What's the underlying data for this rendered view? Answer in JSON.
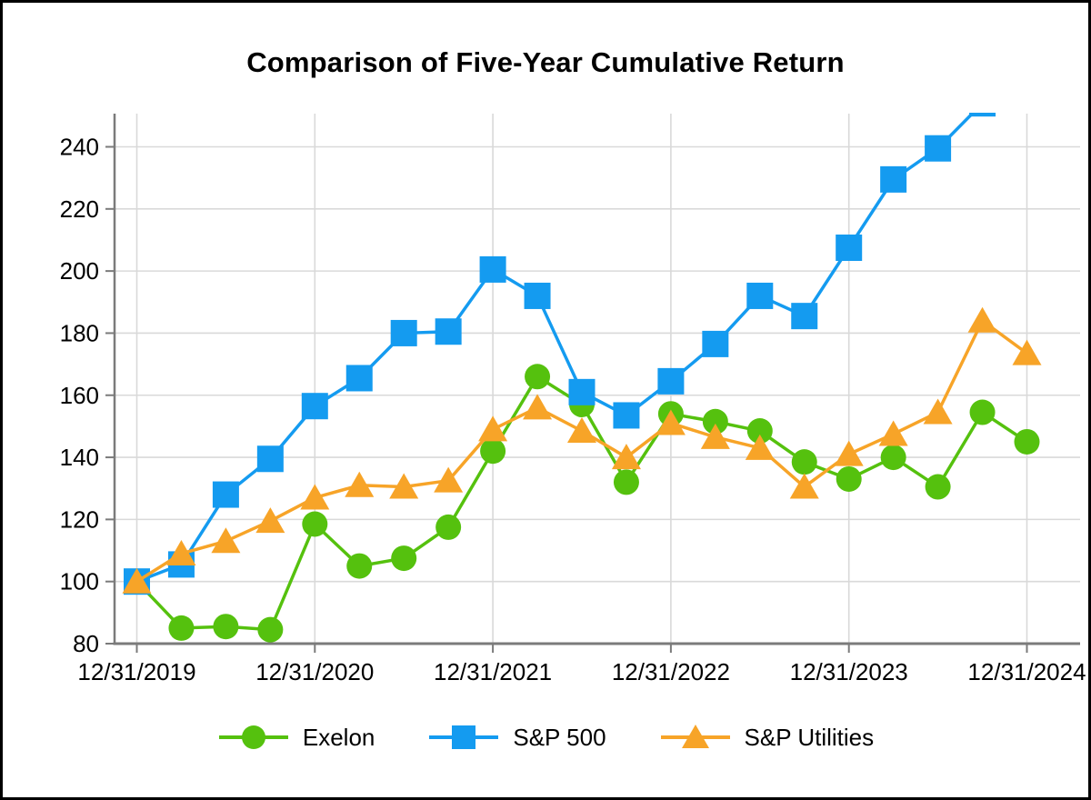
{
  "chart_data": {
    "type": "line",
    "title": "Comparison of Five-Year Cumulative Return",
    "x_tick_labels": [
      "12/31/2019",
      "12/31/2020",
      "12/31/2021",
      "12/31/2022",
      "12/31/2023",
      "12/31/2024"
    ],
    "points_per_year": 4,
    "x_sampling": "quarterly from 12/31/2019 to 12/31/2024 (21 points per series)",
    "y_ticks": [
      80,
      100,
      120,
      140,
      160,
      180,
      200,
      220,
      240
    ],
    "ylim": [
      80,
      251
    ],
    "grid": true,
    "legend_position": "bottom",
    "series": [
      {
        "name": "Exelon",
        "color": "#55c10e",
        "marker": "circle",
        "values": [
          100,
          85,
          85.5,
          84.5,
          118.5,
          105,
          107.5,
          117.5,
          142,
          166,
          157,
          132,
          154,
          151.5,
          148.5,
          138.5,
          133,
          140,
          130.5,
          154.5,
          145
        ]
      },
      {
        "name": "S&P 500",
        "color": "#149bf0",
        "marker": "square",
        "values": [
          100,
          105.5,
          128,
          139.5,
          156.5,
          165.5,
          180,
          180.5,
          200.5,
          192,
          161,
          153.5,
          164.5,
          176.5,
          192,
          185.5,
          207.5,
          229.5,
          239.5,
          254,
          257
        ],
        "note": "last two points rise above the visible axis range; line is clipped at top of plot"
      },
      {
        "name": "S&P Utilities",
        "color": "#f7a428",
        "marker": "triangle",
        "values": [
          100,
          109,
          113,
          119.5,
          127,
          131,
          130.5,
          132.5,
          149,
          156,
          148.5,
          140,
          151,
          146.5,
          143,
          130.5,
          141,
          147.5,
          154.5,
          184,
          173.5
        ]
      }
    ]
  }
}
